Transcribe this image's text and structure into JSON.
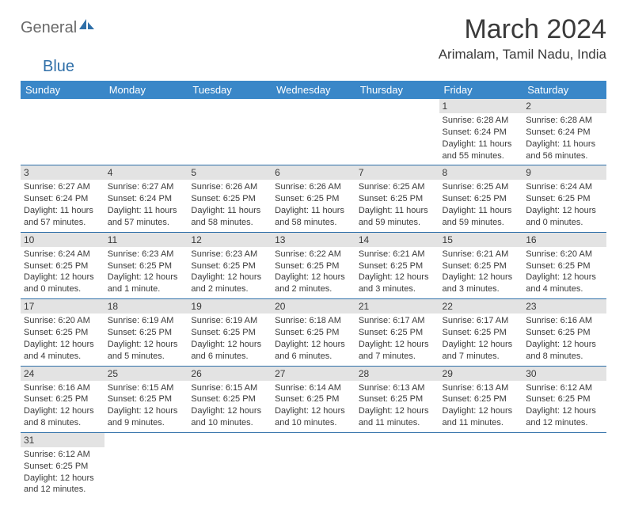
{
  "brand": {
    "part1": "General",
    "part2": "Blue",
    "color1": "#6a6a6a",
    "color2": "#2f6fa8"
  },
  "title": "March 2024",
  "location": "Arimalam, Tamil Nadu, India",
  "colors": {
    "header_bg": "#3a87c8",
    "header_text": "#ffffff",
    "daynum_bg": "#e3e3e3",
    "cell_border": "#2f6fa8",
    "text": "#3a3a3a",
    "background": "#ffffff"
  },
  "fonts": {
    "title_size": 34,
    "location_size": 17,
    "dayhead_size": 13,
    "daynum_size": 12,
    "body_size": 11
  },
  "day_headers": [
    "Sunday",
    "Monday",
    "Tuesday",
    "Wednesday",
    "Thursday",
    "Friday",
    "Saturday"
  ],
  "weeks": [
    [
      null,
      null,
      null,
      null,
      null,
      {
        "n": "1",
        "sr": "6:28 AM",
        "ss": "6:24 PM",
        "dl": "11 hours and 55 minutes."
      },
      {
        "n": "2",
        "sr": "6:28 AM",
        "ss": "6:24 PM",
        "dl": "11 hours and 56 minutes."
      }
    ],
    [
      {
        "n": "3",
        "sr": "6:27 AM",
        "ss": "6:24 PM",
        "dl": "11 hours and 57 minutes."
      },
      {
        "n": "4",
        "sr": "6:27 AM",
        "ss": "6:24 PM",
        "dl": "11 hours and 57 minutes."
      },
      {
        "n": "5",
        "sr": "6:26 AM",
        "ss": "6:25 PM",
        "dl": "11 hours and 58 minutes."
      },
      {
        "n": "6",
        "sr": "6:26 AM",
        "ss": "6:25 PM",
        "dl": "11 hours and 58 minutes."
      },
      {
        "n": "7",
        "sr": "6:25 AM",
        "ss": "6:25 PM",
        "dl": "11 hours and 59 minutes."
      },
      {
        "n": "8",
        "sr": "6:25 AM",
        "ss": "6:25 PM",
        "dl": "11 hours and 59 minutes."
      },
      {
        "n": "9",
        "sr": "6:24 AM",
        "ss": "6:25 PM",
        "dl": "12 hours and 0 minutes."
      }
    ],
    [
      {
        "n": "10",
        "sr": "6:24 AM",
        "ss": "6:25 PM",
        "dl": "12 hours and 0 minutes."
      },
      {
        "n": "11",
        "sr": "6:23 AM",
        "ss": "6:25 PM",
        "dl": "12 hours and 1 minute."
      },
      {
        "n": "12",
        "sr": "6:23 AM",
        "ss": "6:25 PM",
        "dl": "12 hours and 2 minutes."
      },
      {
        "n": "13",
        "sr": "6:22 AM",
        "ss": "6:25 PM",
        "dl": "12 hours and 2 minutes."
      },
      {
        "n": "14",
        "sr": "6:21 AM",
        "ss": "6:25 PM",
        "dl": "12 hours and 3 minutes."
      },
      {
        "n": "15",
        "sr": "6:21 AM",
        "ss": "6:25 PM",
        "dl": "12 hours and 3 minutes."
      },
      {
        "n": "16",
        "sr": "6:20 AM",
        "ss": "6:25 PM",
        "dl": "12 hours and 4 minutes."
      }
    ],
    [
      {
        "n": "17",
        "sr": "6:20 AM",
        "ss": "6:25 PM",
        "dl": "12 hours and 4 minutes."
      },
      {
        "n": "18",
        "sr": "6:19 AM",
        "ss": "6:25 PM",
        "dl": "12 hours and 5 minutes."
      },
      {
        "n": "19",
        "sr": "6:19 AM",
        "ss": "6:25 PM",
        "dl": "12 hours and 6 minutes."
      },
      {
        "n": "20",
        "sr": "6:18 AM",
        "ss": "6:25 PM",
        "dl": "12 hours and 6 minutes."
      },
      {
        "n": "21",
        "sr": "6:17 AM",
        "ss": "6:25 PM",
        "dl": "12 hours and 7 minutes."
      },
      {
        "n": "22",
        "sr": "6:17 AM",
        "ss": "6:25 PM",
        "dl": "12 hours and 7 minutes."
      },
      {
        "n": "23",
        "sr": "6:16 AM",
        "ss": "6:25 PM",
        "dl": "12 hours and 8 minutes."
      }
    ],
    [
      {
        "n": "24",
        "sr": "6:16 AM",
        "ss": "6:25 PM",
        "dl": "12 hours and 8 minutes."
      },
      {
        "n": "25",
        "sr": "6:15 AM",
        "ss": "6:25 PM",
        "dl": "12 hours and 9 minutes."
      },
      {
        "n": "26",
        "sr": "6:15 AM",
        "ss": "6:25 PM",
        "dl": "12 hours and 10 minutes."
      },
      {
        "n": "27",
        "sr": "6:14 AM",
        "ss": "6:25 PM",
        "dl": "12 hours and 10 minutes."
      },
      {
        "n": "28",
        "sr": "6:13 AM",
        "ss": "6:25 PM",
        "dl": "12 hours and 11 minutes."
      },
      {
        "n": "29",
        "sr": "6:13 AM",
        "ss": "6:25 PM",
        "dl": "12 hours and 11 minutes."
      },
      {
        "n": "30",
        "sr": "6:12 AM",
        "ss": "6:25 PM",
        "dl": "12 hours and 12 minutes."
      }
    ],
    [
      {
        "n": "31",
        "sr": "6:12 AM",
        "ss": "6:25 PM",
        "dl": "12 hours and 12 minutes."
      },
      null,
      null,
      null,
      null,
      null,
      null
    ]
  ],
  "labels": {
    "sunrise": "Sunrise:",
    "sunset": "Sunset:",
    "daylight": "Daylight:"
  }
}
